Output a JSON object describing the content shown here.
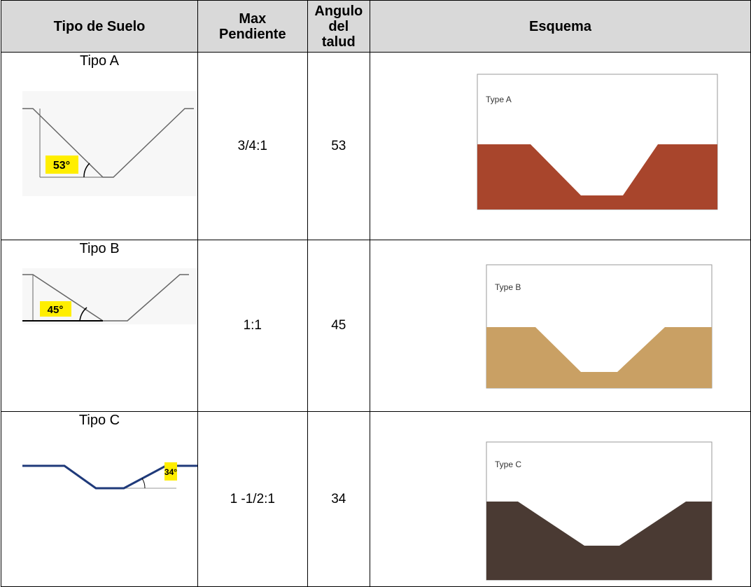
{
  "header": [
    "Tipo de Suelo",
    "Max Pendiente",
    "Angulo del talud",
    "Esquema"
  ],
  "rows": [
    {
      "soil_type": "Tipo A",
      "max_slope": "3/4:1",
      "angle": 53,
      "diagram_angle": "53°",
      "scheme_label": "Type A"
    },
    {
      "soil_type": "Tipo B",
      "max_slope": "1:1",
      "angle": 45,
      "diagram_angle": "45°",
      "scheme_label": "Type B"
    },
    {
      "soil_type": "Tipo C",
      "max_slope": "1 -1/2:1",
      "angle": 34,
      "diagram_angle": "34°",
      "scheme_label": "Type C"
    }
  ]
}
